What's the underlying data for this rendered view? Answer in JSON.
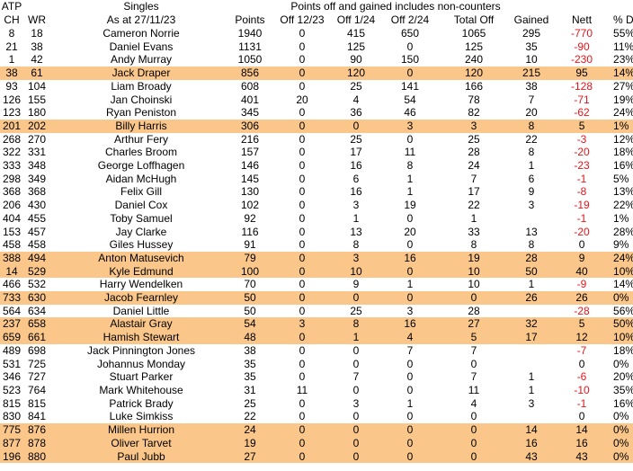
{
  "header": {
    "top": [
      "ATP",
      "Singles",
      "Points off and gained includes non-counters"
    ],
    "columns": [
      "CH",
      "WR",
      "As at 27/11/23",
      "Points",
      "Off 12/23",
      "Off 1/24",
      "Off 2/24",
      "Total Off",
      "Gained",
      "Nett",
      "% Dec"
    ]
  },
  "table": {
    "rows": [
      {
        "cells": [
          8,
          18,
          "Cameron Norrie",
          1940,
          0,
          415,
          650,
          1065,
          295,
          -770,
          "55%"
        ]
      },
      {
        "cells": [
          21,
          38,
          "Daniel Evans",
          1131,
          0,
          125,
          0,
          125,
          35,
          -90,
          "11%"
        ]
      },
      {
        "cells": [
          1,
          42,
          "Andy Murray",
          1050,
          0,
          90,
          150,
          240,
          10,
          -230,
          "23%"
        ]
      },
      {
        "cells": [
          38,
          61,
          "Jack Draper",
          856,
          0,
          120,
          0,
          120,
          215,
          95,
          "14%"
        ],
        "highlight": true
      },
      {
        "cells": [
          93,
          104,
          "Liam Broady",
          608,
          0,
          25,
          141,
          166,
          38,
          -128,
          "27%"
        ]
      },
      {
        "cells": [
          126,
          155,
          "Jan Choinski",
          401,
          20,
          4,
          54,
          78,
          7,
          -71,
          "19%"
        ]
      },
      {
        "cells": [
          123,
          180,
          "Ryan Peniston",
          345,
          0,
          36,
          46,
          82,
          20,
          -62,
          "24%"
        ]
      },
      {
        "cells": [
          201,
          202,
          "Billy Harris",
          306,
          0,
          0,
          3,
          3,
          8,
          5,
          "1%"
        ],
        "highlight": true
      },
      {
        "cells": [
          268,
          270,
          "Arthur Fery",
          216,
          0,
          25,
          0,
          25,
          22,
          -3,
          "12%"
        ]
      },
      {
        "cells": [
          322,
          331,
          "Charles Broom",
          157,
          0,
          17,
          11,
          28,
          8,
          -20,
          "18%"
        ]
      },
      {
        "cells": [
          333,
          348,
          "George Loffhagen",
          146,
          0,
          16,
          8,
          24,
          1,
          -23,
          "16%"
        ]
      },
      {
        "cells": [
          298,
          349,
          "Aidan McHugh",
          145,
          0,
          6,
          1,
          7,
          6,
          -1,
          "5%"
        ]
      },
      {
        "cells": [
          368,
          368,
          "Felix Gill",
          130,
          0,
          16,
          1,
          17,
          9,
          -8,
          "13%"
        ]
      },
      {
        "cells": [
          206,
          430,
          "Daniel Cox",
          102,
          0,
          3,
          19,
          22,
          3,
          -19,
          "22%"
        ]
      },
      {
        "cells": [
          404,
          455,
          "Toby Samuel",
          92,
          0,
          1,
          0,
          1,
          null,
          -1,
          "1%"
        ]
      },
      {
        "cells": [
          153,
          457,
          "Jay Clarke",
          116,
          0,
          13,
          20,
          33,
          13,
          -20,
          "28%"
        ]
      },
      {
        "cells": [
          458,
          458,
          "Giles Hussey",
          91,
          0,
          8,
          0,
          8,
          8,
          0,
          "9%"
        ]
      },
      {
        "cells": [
          388,
          494,
          "Anton Matusevich",
          79,
          0,
          3,
          16,
          19,
          28,
          9,
          "24%"
        ],
        "highlight": true
      },
      {
        "cells": [
          14,
          529,
          "Kyle Edmund",
          100,
          0,
          10,
          0,
          10,
          50,
          40,
          "10%"
        ],
        "highlight": true
      },
      {
        "cells": [
          466,
          532,
          "Harry Wendelken",
          70,
          0,
          9,
          1,
          10,
          1,
          -9,
          "14%"
        ]
      },
      {
        "cells": [
          733,
          630,
          "Jacob Fearnley",
          50,
          0,
          0,
          0,
          0,
          26,
          26,
          "0%"
        ],
        "highlight": true
      },
      {
        "cells": [
          564,
          634,
          "Daniel Little",
          50,
          0,
          25,
          3,
          28,
          null,
          -28,
          "56%"
        ]
      },
      {
        "cells": [
          237,
          658,
          "Alastair Gray",
          54,
          3,
          8,
          16,
          27,
          32,
          5,
          "50%"
        ],
        "highlight": true
      },
      {
        "cells": [
          659,
          661,
          "Hamish Stewart",
          48,
          0,
          1,
          4,
          5,
          17,
          12,
          "10%"
        ],
        "highlight": true
      },
      {
        "cells": [
          489,
          698,
          "Jack Pinnington Jones",
          38,
          0,
          0,
          7,
          7,
          null,
          -7,
          "18%"
        ]
      },
      {
        "cells": [
          531,
          725,
          "Johannus Monday",
          35,
          0,
          0,
          0,
          0,
          null,
          0,
          "0%"
        ]
      },
      {
        "cells": [
          346,
          727,
          "Stuart Parker",
          35,
          0,
          7,
          0,
          7,
          1,
          -6,
          "20%"
        ]
      },
      {
        "cells": [
          523,
          764,
          "Mark Whitehouse",
          31,
          11,
          0,
          0,
          11,
          1,
          -10,
          "35%"
        ]
      },
      {
        "cells": [
          815,
          815,
          "Patrick Brady",
          25,
          0,
          3,
          1,
          4,
          3,
          -1,
          "16%"
        ]
      },
      {
        "cells": [
          830,
          841,
          "Luke Simkiss",
          22,
          0,
          0,
          0,
          0,
          null,
          0,
          "0%"
        ]
      },
      {
        "cells": [
          775,
          876,
          "Millen Hurrion",
          24,
          0,
          0,
          0,
          0,
          14,
          14,
          "0%"
        ],
        "highlight": true
      },
      {
        "cells": [
          877,
          878,
          "Oliver Tarvet",
          19,
          0,
          0,
          0,
          0,
          16,
          16,
          "0%"
        ],
        "highlight": true
      },
      {
        "cells": [
          196,
          880,
          "Paul Jubb",
          27,
          0,
          0,
          0,
          0,
          43,
          43,
          "0%"
        ],
        "highlight": true
      }
    ]
  }
}
